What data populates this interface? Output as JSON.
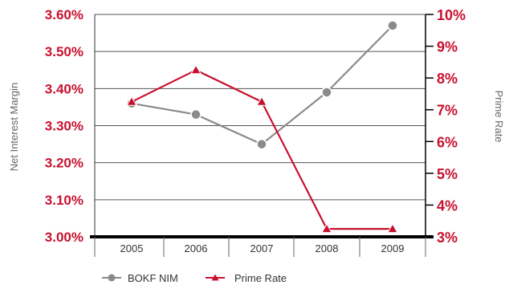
{
  "colors": {
    "left_axis": "#c8102e",
    "right_axis": "#c8102e",
    "nim_series": "#8a8a8a",
    "prime_series": "#c8102e",
    "grid": "#555555",
    "baseline": "#000000"
  },
  "chart_data": {
    "type": "line",
    "x": [
      "2005",
      "2006",
      "2007",
      "2008",
      "2009"
    ],
    "series": [
      {
        "name": "BOKF NIM",
        "axis": "left",
        "marker": "circle",
        "values": [
          3.36,
          3.33,
          3.25,
          3.39,
          3.57
        ]
      },
      {
        "name": "Prime Rate",
        "axis": "right",
        "marker": "triangle",
        "values": [
          7.25,
          8.25,
          7.25,
          3.25,
          3.25
        ]
      }
    ],
    "left_axis": {
      "label": "Net Interest Margin",
      "range": [
        3.0,
        3.6
      ],
      "ticks": [
        "3.00%",
        "3.10%",
        "3.20%",
        "3.30%",
        "3.40%",
        "3.50%",
        "3.60%"
      ]
    },
    "right_axis": {
      "label": "Prime Rate",
      "range": [
        3,
        10
      ],
      "ticks": [
        "3%",
        "4%",
        "5%",
        "6%",
        "7%",
        "8%",
        "9%",
        "10%"
      ]
    },
    "grid": true,
    "legend_position": "bottom-left"
  }
}
